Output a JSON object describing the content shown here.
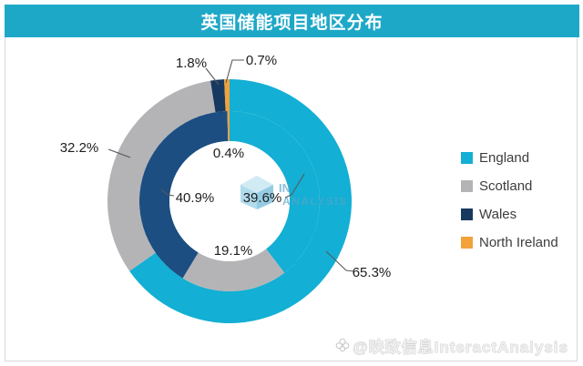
{
  "title": "英国储能项目地区分布",
  "chart_data": {
    "type": "donut",
    "title": "英国储能项目地区分布",
    "categories": [
      "England",
      "Scotland",
      "Wales",
      "North Ireland"
    ],
    "unit": "%",
    "series": [
      {
        "name": "outer-ring",
        "values": [
          65.3,
          32.2,
          1.8,
          0.7
        ],
        "labels": [
          "65.3%",
          "32.2%",
          "1.8%",
          "0.7%"
        ],
        "slice_colors": [
          "#13AFD4",
          "#B4B4B7",
          "#17395F",
          "#F2A13B"
        ]
      },
      {
        "name": "inner-ring",
        "values": [
          39.6,
          19.1,
          40.9,
          0.4
        ],
        "labels": [
          "39.6%",
          "19.1%",
          "40.9%",
          "0.4%"
        ],
        "slice_colors": [
          "#13AFD4",
          "#B4B4B7",
          "#1C4E82",
          "#F2A13B"
        ]
      }
    ],
    "legend": {
      "position": "right",
      "items": [
        {
          "label": "England",
          "color": "#13AFD4"
        },
        {
          "label": "Scotland",
          "color": "#B4B4B7"
        },
        {
          "label": "Wales",
          "color": "#17395F"
        },
        {
          "label": "North Ireland",
          "color": "#F2A13B"
        }
      ]
    }
  },
  "banner": {
    "background": "#1EA8C8",
    "text_color": "#FFFFFF"
  },
  "watermarks": {
    "center_logo_line1": "IN",
    "center_logo_line2": "ANALYSIS",
    "bottom_text": "@映致信息InteractAnalysis"
  }
}
